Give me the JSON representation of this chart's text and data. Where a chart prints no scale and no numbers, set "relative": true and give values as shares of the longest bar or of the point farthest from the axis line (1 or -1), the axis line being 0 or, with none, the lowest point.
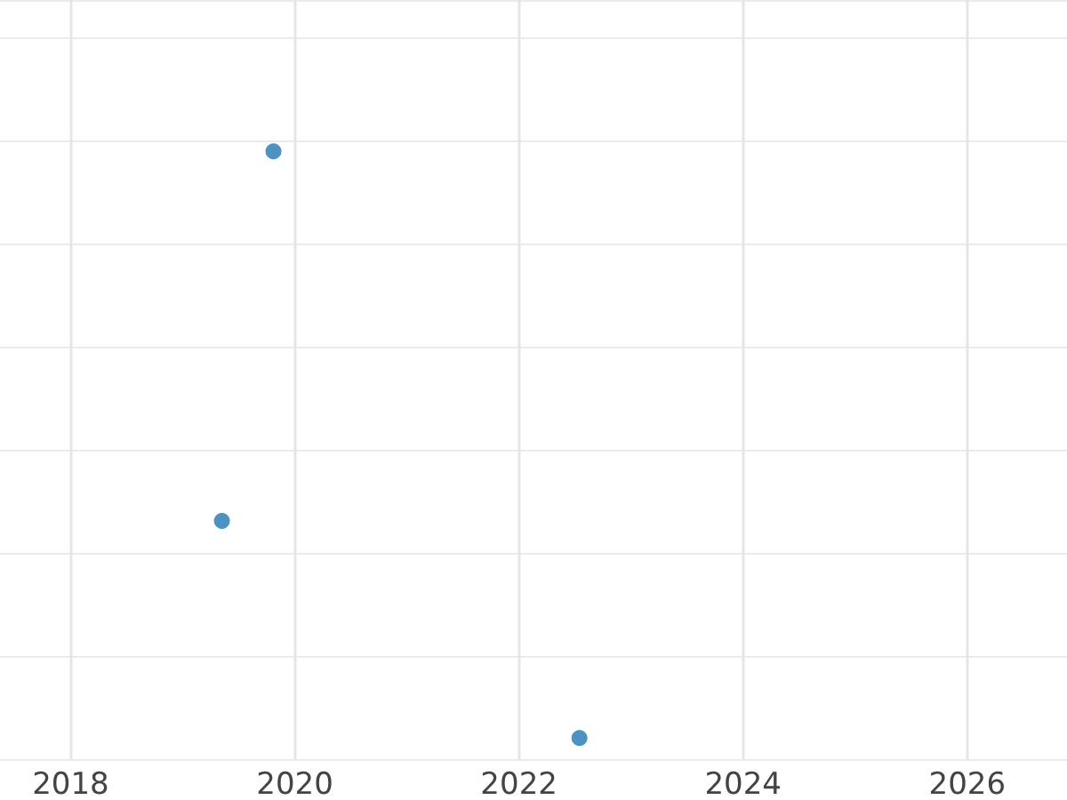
{
  "chart_data": {
    "type": "scatter",
    "x": [
      2019.35,
      2019.81,
      2022.54
    ],
    "values": [
      0.37,
      1,
      0
    ],
    "color": "#1f77b4",
    "relative": true,
    "xlim": [
      2017.37,
      2026.89
    ],
    "xticks": [
      2018,
      2020,
      2022,
      2024,
      2026
    ],
    "grid": true,
    "marker": "circle",
    "tick_labels": "x"
  }
}
